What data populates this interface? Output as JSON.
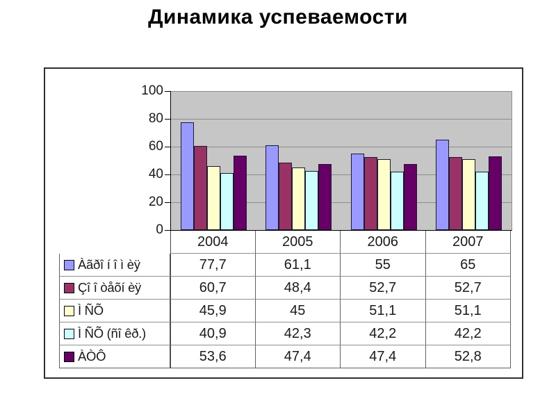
{
  "title": "Динамика успеваемости",
  "chart_data": {
    "type": "bar",
    "title": "",
    "categories": [
      "2004",
      "2005",
      "2006",
      "2007"
    ],
    "series": [
      {
        "name": "Àãðî í î ì èÿ",
        "color": "#9999FF",
        "values": [
          77.7,
          61.1,
          55,
          65
        ],
        "display": [
          "77,7",
          "61,1",
          "55",
          "65"
        ]
      },
      {
        "name": "Çî î òåõí èÿ",
        "color": "#993366",
        "values": [
          60.7,
          48.4,
          52.7,
          52.7
        ],
        "display": [
          "60,7",
          "48,4",
          "52,7",
          "52,7"
        ]
      },
      {
        "name": "Ì  ÑÕ",
        "color": "#FFFFCC",
        "values": [
          45.9,
          45,
          51.1,
          51.1
        ],
        "display": [
          "45,9",
          "45",
          "51,1",
          "51,1"
        ]
      },
      {
        "name": "Ì  ÑÕ (ñî êð.)",
        "color": "#CCFFFF",
        "values": [
          40.9,
          42.3,
          42.2,
          42.2
        ],
        "display": [
          "40,9",
          "42,3",
          "42,2",
          "42,2"
        ]
      },
      {
        "name": "ÀÒÔ",
        "color": "#660066",
        "values": [
          53.6,
          47.4,
          47.4,
          52.8
        ],
        "display": [
          "53,6",
          "47,4",
          "47,4",
          "52,8"
        ]
      }
    ],
    "xlabel": "",
    "ylabel": "",
    "ylim": [
      0,
      100
    ],
    "yticks": [
      0,
      20,
      40,
      60,
      80,
      100
    ],
    "grid": true,
    "legend_position": "table-left",
    "plot_bg": "#C6C6C6",
    "data_table": true
  }
}
